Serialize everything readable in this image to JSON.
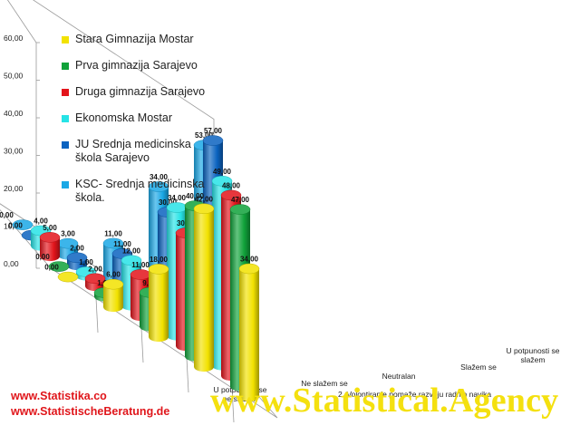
{
  "chart_data": {
    "type": "bar",
    "title": "",
    "xlabel": "2. Volontiranje pomaže razvoju radnih navika",
    "ylabel": "",
    "ylim": [
      0,
      60
    ],
    "yticks": [
      "0,00",
      "10,00",
      "20,00",
      "30,00",
      "40,00",
      "50,00",
      "60,00"
    ],
    "categories": [
      "U potpunosti se ne slažem",
      "Ne slažem se",
      "Neutralan",
      "Slažem se",
      "U potpunosti se slažem"
    ],
    "category_labels": [
      "U potpunosti se ne slažem",
      "Ne slažem se",
      "Neutralan",
      "Slažem se",
      "U potpunosti se slažem"
    ],
    "series": [
      {
        "name": "Stara Gimnazija Mostar",
        "color": "#f2e200",
        "values": [
          0.0,
          6.0,
          18.0,
          42.0,
          34.0
        ],
        "labels": [
          "0,00",
          "6,00",
          "18,00",
          "42,00",
          "34,00"
        ]
      },
      {
        "name": "Prva gimnazija Sarajevo",
        "color": "#10a23a",
        "values": [
          0.0,
          1.0,
          9.0,
          40.0,
          47.0
        ],
        "labels": [
          "0,00",
          "1,00",
          "9,00",
          "40,00",
          "47,00"
        ]
      },
      {
        "name": "Druga gimnazija Sarajevo",
        "color": "#e3141b",
        "values": [
          5.0,
          2.0,
          11.0,
          30.0,
          48.0
        ],
        "labels": [
          "5,00",
          "2,00",
          "11,00",
          "30,00",
          "48,00"
        ]
      },
      {
        "name": "Ekonomska Mostar",
        "color": "#26e3e6",
        "values": [
          4.0,
          1.0,
          12.0,
          34.0,
          49.0
        ],
        "labels": [
          "4,00",
          "1,00",
          "12,00",
          "34,00",
          "49,00"
        ]
      },
      {
        "name": "JU Srednja medicinska škola Sarajevo",
        "color": "#0b63c0",
        "values": [
          0.0,
          2.0,
          11.0,
          30.0,
          57.0
        ],
        "labels": [
          "0,00",
          "2,00",
          "11,00",
          "30,00",
          "57,00"
        ]
      },
      {
        "name": "KSC- Srednja medicinska škola.",
        "color": "#1aa8e6",
        "values": [
          0.0,
          3.0,
          11.0,
          34.0,
          53.0
        ],
        "labels": [
          "0,00",
          "3,00",
          "11,00",
          "34,00",
          "53,00"
        ]
      }
    ],
    "legend": "left",
    "grid": false
  },
  "legend_lines": [
    [
      "Stara Gimnazija Mostar"
    ],
    [
      "Prva gimnazija Sarajevo"
    ],
    [
      "Druga gimnazija Sarajevo"
    ],
    [
      "Ekonomska Mostar"
    ],
    [
      "JU Srednja medicinska",
      "škola Sarajevo"
    ],
    [
      "KSC- Srednja medicinska",
      "škola."
    ]
  ],
  "watermarks": {
    "line1": "www.Statistika.co",
    "line2": "www.StatistischeBeratung.de",
    "big": "www.Statistical.Agency"
  }
}
